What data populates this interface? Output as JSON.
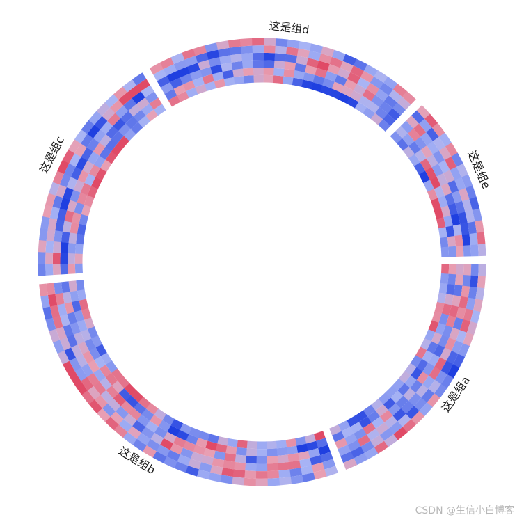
{
  "chart_data": {
    "type": "heatmap",
    "layout": "circular",
    "track_count": 6,
    "color_scale": {
      "low": "#1f3fe0",
      "mid": "#a8b4f5",
      "mid_alt": "#e8a0b4",
      "high": "#e04a66"
    },
    "sectors": [
      {
        "name": "这是组a",
        "cell_count": 22
      },
      {
        "name": "这是组b",
        "cell_count": 34
      },
      {
        "name": "这是组c",
        "cell_count": 20
      },
      {
        "name": "这是组d",
        "cell_count": 24
      },
      {
        "name": "这是组e",
        "cell_count": 14
      }
    ],
    "sector_order": "clockwise starting at 3 o'clock"
  },
  "watermark": "CSDN @生信小白博客"
}
